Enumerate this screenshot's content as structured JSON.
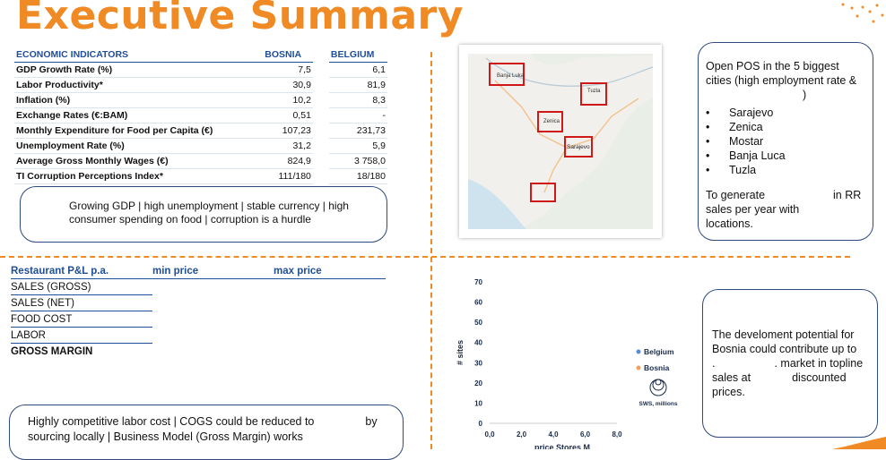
{
  "title": "Executive Summary",
  "indicators": {
    "header": {
      "label": "ECONOMIC INDICATORS",
      "col1": "BOSNIA",
      "col2": "BELGIUM"
    },
    "rows": [
      {
        "label": "GDP Growth Rate (%)",
        "bosnia": "7,5",
        "belgium": "6,1"
      },
      {
        "label": "Labor Productivity*",
        "bosnia": "30,9",
        "belgium": "81,9"
      },
      {
        "label": "Inflation (%)",
        "bosnia": "10,2",
        "belgium": "8,3"
      },
      {
        "label": "Exchange Rates (€:BAM)",
        "bosnia": "0,51",
        "belgium": "-"
      },
      {
        "label": "Monthly Expenditure for Food per Capita (€)",
        "bosnia": "107,23",
        "belgium": "231,73"
      },
      {
        "label": "Unemployment Rate (%)",
        "bosnia": "31,2",
        "belgium": "5,9"
      },
      {
        "label": "Average Gross Monthly Wages (€)",
        "bosnia": "824,9",
        "belgium": "3 758,0"
      },
      {
        "label": "TI Corruption Perceptions Index*",
        "bosnia": "111/180",
        "belgium": "18/180"
      }
    ]
  },
  "summary_box_1": "Growing GDP | high unemployment | stable currency | high consumer spending on food | corruption is a hurdle",
  "map": {
    "labels": [
      "Banja Luka",
      "Tuzla",
      "Zenica",
      "Sarajevo"
    ]
  },
  "pos_box": {
    "line1": "Open POS in the 5 biggest cities (high employment rate &",
    "line2": ")",
    "cities": [
      "Sarajevo",
      "Zenica",
      "Mostar",
      "Banja Luca",
      "Tuzla"
    ],
    "line3a": "To generate",
    "line3b": "in RR",
    "line4": "sales per year with",
    "line5": "locations."
  },
  "pl": {
    "header": {
      "label": "Restaurant P&L p.a.",
      "col1": "min price",
      "col2": "max price"
    },
    "rows": [
      "SALES (GROSS)",
      "SALES (NET)",
      "FOOD COST",
      "LABOR",
      "GROSS MARGIN"
    ]
  },
  "summary_box_2": {
    "line1a": "Highly competitive labor cost | COGS could be reduced to",
    "line1b": "by",
    "line2": "sourcing locally | Business Model (Gross Margin) works"
  },
  "potential_box": {
    "line1": "The develoment potential for",
    "line2": "Bosnia could contribute up to",
    "line3a": ".",
    "line3b": ". market in topline",
    "line4a": "sales at",
    "line4b": "discounted",
    "line5": "prices."
  },
  "chart_data": {
    "type": "scatter",
    "ylabel": "# sites",
    "xlabel": "price Stores M",
    "xlim": [
      0,
      8
    ],
    "ylim": [
      0,
      70
    ],
    "x_ticks": [
      "0,0",
      "2,0",
      "4,0",
      "6,0",
      "8,0"
    ],
    "y_ticks": [
      "0",
      "10",
      "20",
      "30",
      "40",
      "50",
      "60",
      "70"
    ],
    "series": [
      {
        "name": "Belgium",
        "color": "#5b8bd6",
        "points": []
      },
      {
        "name": "Bosnia",
        "color": "#f0a05a",
        "points": []
      }
    ],
    "size_legend": "SWS, millions"
  },
  "colors": {
    "accent": "#f08a24",
    "navy": "#1f4e9a",
    "box_border": "#2e4a7f"
  }
}
